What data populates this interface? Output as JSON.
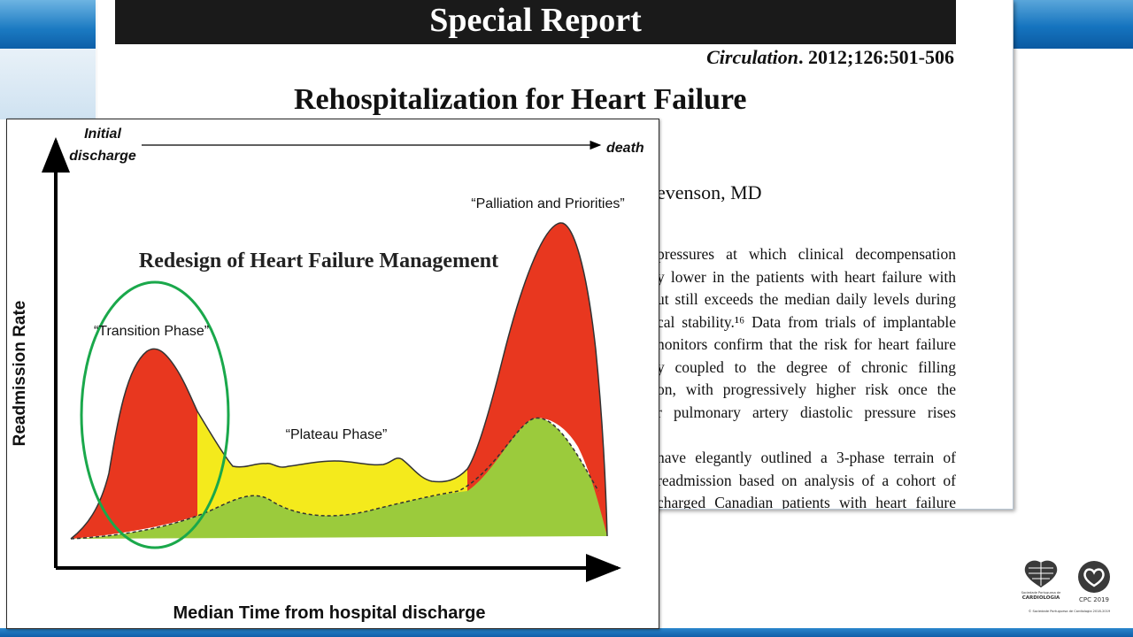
{
  "article": {
    "banner": "Special Report",
    "citation_journal": "Circulation",
    "citation_ref": ". 2012;126:501-506",
    "title": "Rehospitalization for Heart Failure",
    "author_fragment": "evenson, MD",
    "body_lines": [
      "pressures at which clinical decompensation",
      "y lower in the patients with heart failure with",
      "ut still exceeds the median daily levels during",
      "cal stability.¹⁶ Data from trials of implantable",
      "nonitors confirm that the risk for heart failure",
      "y coupled to the degree of chronic filling",
      "on, with progressively higher risk once the",
      "r pulmonary artery diastolic pressure rises",
      "",
      "have elegantly outlined a 3-phase terrain of",
      " readmission based on analysis of a cohort of",
      "charged Canadian patients with heart failure"
    ]
  },
  "figure": {
    "top_axis_start": "Initial discharge",
    "top_axis_start_line1": "Initial",
    "top_axis_start_line2": "discharge",
    "top_axis_end": "death",
    "title": "Redesign of Heart Failure Management",
    "ylabel": "Readmission Rate",
    "xlabel": "Median Time from hospital discharge",
    "phase_labels": {
      "transition": "“Transition Phase”",
      "plateau": "“Plateau Phase”",
      "palliation": "“Palliation and Priorities”"
    }
  },
  "chart_data": {
    "type": "area",
    "title": "Redesign of Heart Failure Management",
    "xlabel": "Median Time from hospital discharge",
    "ylabel": "Readmission Rate",
    "phases": [
      "Transition Phase",
      "Plateau Phase",
      "Palliation and Priorities"
    ],
    "colors": {
      "transition": "#e8371f",
      "plateau": "#f4ea1c",
      "palliation": "#e8371f",
      "baseline": "#9bcb3c",
      "highlight_circle": "#1aa84b"
    }
  },
  "logos": {
    "spc_name": "CARDIOLOGIA",
    "spc_caption": "Sociedade Portuguesa de",
    "cpc_name": "CPC 2019",
    "footer": "© Sociedade Portuguesa de Cardiologia 2018-2019"
  }
}
